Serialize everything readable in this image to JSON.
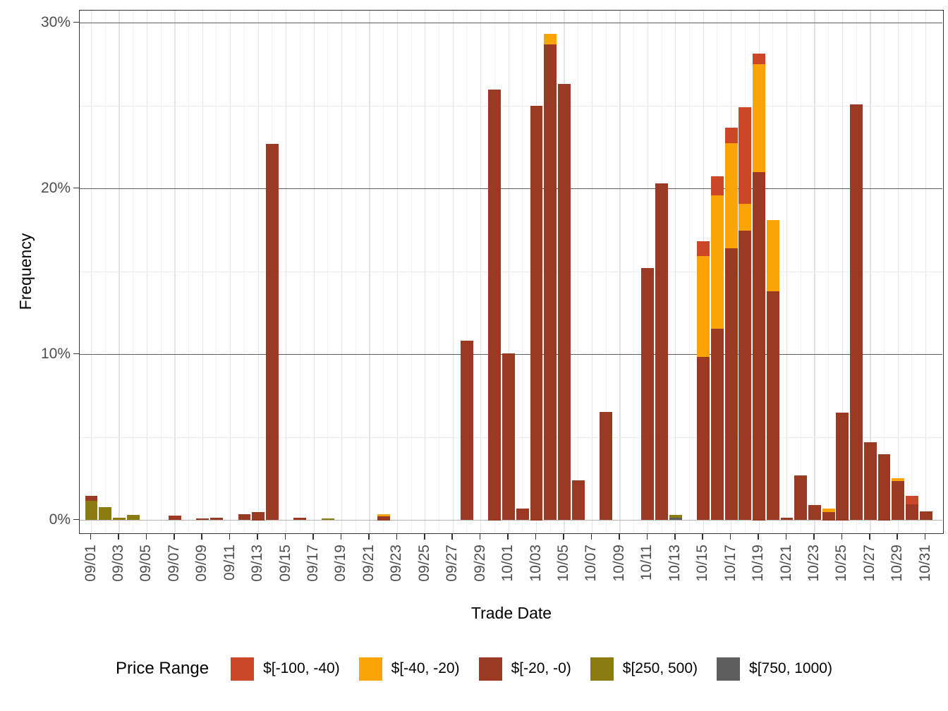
{
  "chart_data": {
    "type": "bar",
    "stacked": true,
    "xlabel": "Trade Date",
    "ylabel": "Frequency",
    "unit": "%",
    "ylim": [
      0,
      30
    ],
    "grid": true,
    "legend_position": "bottom",
    "y_tick_labels": [
      "0%",
      "10%",
      "20%",
      "30%"
    ],
    "y_tick_values": [
      0,
      10,
      20,
      30
    ],
    "y_minor_values": [
      5,
      15,
      25
    ],
    "x_tick_labels": [
      "09/01",
      "09/03",
      "09/05",
      "09/07",
      "09/09",
      "09/11",
      "09/13",
      "09/15",
      "09/17",
      "09/19",
      "09/21",
      "09/23",
      "09/25",
      "09/27",
      "09/29",
      "10/01",
      "10/03",
      "10/05",
      "10/07",
      "10/09",
      "10/11",
      "10/13",
      "10/15",
      "10/17",
      "10/19",
      "10/21",
      "10/23",
      "10/25",
      "10/27",
      "10/29",
      "10/31"
    ],
    "categories": [
      "09/01",
      "09/02",
      "09/03",
      "09/04",
      "09/05",
      "09/06",
      "09/07",
      "09/08",
      "09/09",
      "09/10",
      "09/11",
      "09/12",
      "09/13",
      "09/14",
      "09/15",
      "09/16",
      "09/17",
      "09/18",
      "09/19",
      "09/20",
      "09/21",
      "09/22",
      "09/23",
      "09/24",
      "09/25",
      "09/26",
      "09/27",
      "09/28",
      "09/29",
      "09/30",
      "10/01",
      "10/02",
      "10/03",
      "10/04",
      "10/05",
      "10/06",
      "10/07",
      "10/08",
      "10/09",
      "10/10",
      "10/11",
      "10/12",
      "10/13",
      "10/14",
      "10/15",
      "10/16",
      "10/17",
      "10/18",
      "10/19",
      "10/20",
      "10/21",
      "10/22",
      "10/23",
      "10/24",
      "10/25",
      "10/26",
      "10/27",
      "10/28",
      "10/29",
      "10/30",
      "10/31"
    ],
    "colors": {
      "red": "#cb4727",
      "amber": "#fba408",
      "brick": "#9b3a22",
      "olive": "#8c7b10",
      "gray": "#5e5e5e"
    },
    "legend": {
      "title": "Price Range",
      "entries": [
        {
          "label": "$[-100, -40)",
          "key": "red"
        },
        {
          "label": "$[-40, -20)",
          "key": "amber"
        },
        {
          "label": "$[-20, -0)",
          "key": "brick"
        },
        {
          "label": "$[250, 500)",
          "key": "olive"
        },
        {
          "label": "$[750, 1000)",
          "key": "gray"
        }
      ]
    },
    "bars": [
      {
        "date": "09/01",
        "segments": [
          [
            "olive",
            1.15
          ],
          [
            "brick",
            0.3
          ]
        ]
      },
      {
        "date": "09/02",
        "segments": [
          [
            "olive",
            0.8
          ]
        ]
      },
      {
        "date": "09/03",
        "segments": [
          [
            "olive",
            0.13
          ]
        ]
      },
      {
        "date": "09/04",
        "segments": [
          [
            "olive",
            0.3
          ]
        ]
      },
      {
        "date": "09/07",
        "segments": [
          [
            "brick",
            0.26
          ]
        ]
      },
      {
        "date": "09/09",
        "segments": [
          [
            "brick",
            0.1
          ]
        ]
      },
      {
        "date": "09/10",
        "segments": [
          [
            "brick",
            0.15
          ]
        ]
      },
      {
        "date": "09/12",
        "segments": [
          [
            "brick",
            0.38
          ]
        ]
      },
      {
        "date": "09/13",
        "segments": [
          [
            "brick",
            0.5
          ]
        ]
      },
      {
        "date": "09/14",
        "segments": [
          [
            "brick",
            22.7
          ]
        ]
      },
      {
        "date": "09/16",
        "segments": [
          [
            "brick",
            0.13
          ]
        ]
      },
      {
        "date": "09/18",
        "segments": [
          [
            "olive",
            0.1
          ]
        ]
      },
      {
        "date": "09/22",
        "segments": [
          [
            "brick",
            0.25
          ],
          [
            "amber",
            0.1
          ]
        ]
      },
      {
        "date": "09/28",
        "segments": [
          [
            "brick",
            10.85
          ]
        ]
      },
      {
        "date": "09/30",
        "segments": [
          [
            "brick",
            26.0
          ]
        ]
      },
      {
        "date": "10/01",
        "segments": [
          [
            "brick",
            10.05
          ]
        ]
      },
      {
        "date": "10/02",
        "segments": [
          [
            "brick",
            0.7
          ]
        ]
      },
      {
        "date": "10/03",
        "segments": [
          [
            "brick",
            25.0
          ]
        ]
      },
      {
        "date": "10/04",
        "segments": [
          [
            "brick",
            28.7
          ],
          [
            "amber",
            0.65
          ]
        ]
      },
      {
        "date": "10/05",
        "segments": [
          [
            "brick",
            26.3
          ]
        ]
      },
      {
        "date": "10/06",
        "segments": [
          [
            "brick",
            2.4
          ]
        ]
      },
      {
        "date": "10/08",
        "segments": [
          [
            "brick",
            6.55
          ]
        ]
      },
      {
        "date": "10/11",
        "segments": [
          [
            "brick",
            15.2
          ]
        ]
      },
      {
        "date": "10/12",
        "segments": [
          [
            "brick",
            20.3
          ]
        ]
      },
      {
        "date": "10/13",
        "segments": [
          [
            "gray",
            0.15
          ],
          [
            "olive",
            0.15
          ]
        ]
      },
      {
        "date": "10/15",
        "segments": [
          [
            "brick",
            9.85
          ],
          [
            "amber",
            6.1
          ],
          [
            "red",
            0.9
          ]
        ]
      },
      {
        "date": "10/16",
        "segments": [
          [
            "brick",
            11.55
          ],
          [
            "amber",
            8.05
          ],
          [
            "red",
            1.15
          ]
        ]
      },
      {
        "date": "10/17",
        "segments": [
          [
            "brick",
            16.4
          ],
          [
            "amber",
            6.35
          ],
          [
            "red",
            0.95
          ]
        ]
      },
      {
        "date": "10/18",
        "segments": [
          [
            "brick",
            17.45
          ],
          [
            "amber",
            1.65
          ],
          [
            "red",
            5.8
          ]
        ]
      },
      {
        "date": "10/19",
        "segments": [
          [
            "brick",
            21.0
          ],
          [
            "amber",
            6.5
          ],
          [
            "red",
            0.65
          ]
        ]
      },
      {
        "date": "10/20",
        "segments": [
          [
            "brick",
            13.8
          ],
          [
            "amber",
            4.3
          ]
        ]
      },
      {
        "date": "10/21",
        "segments": [
          [
            "brick",
            0.15
          ]
        ]
      },
      {
        "date": "10/22",
        "segments": [
          [
            "brick",
            2.7
          ]
        ]
      },
      {
        "date": "10/23",
        "segments": [
          [
            "brick",
            0.9
          ]
        ]
      },
      {
        "date": "10/24",
        "segments": [
          [
            "brick",
            0.5
          ],
          [
            "amber",
            0.2
          ]
        ]
      },
      {
        "date": "10/25",
        "segments": [
          [
            "brick",
            6.5
          ]
        ]
      },
      {
        "date": "10/26",
        "segments": [
          [
            "brick",
            25.1
          ]
        ]
      },
      {
        "date": "10/27",
        "segments": [
          [
            "brick",
            4.7
          ]
        ]
      },
      {
        "date": "10/28",
        "segments": [
          [
            "brick",
            4.0
          ]
        ]
      },
      {
        "date": "10/29",
        "segments": [
          [
            "brick",
            2.35
          ],
          [
            "amber",
            0.2
          ]
        ]
      },
      {
        "date": "10/30",
        "segments": [
          [
            "brick",
            0.95
          ],
          [
            "red",
            0.5
          ]
        ]
      },
      {
        "date": "10/31",
        "segments": [
          [
            "brick",
            0.55
          ]
        ]
      }
    ]
  }
}
